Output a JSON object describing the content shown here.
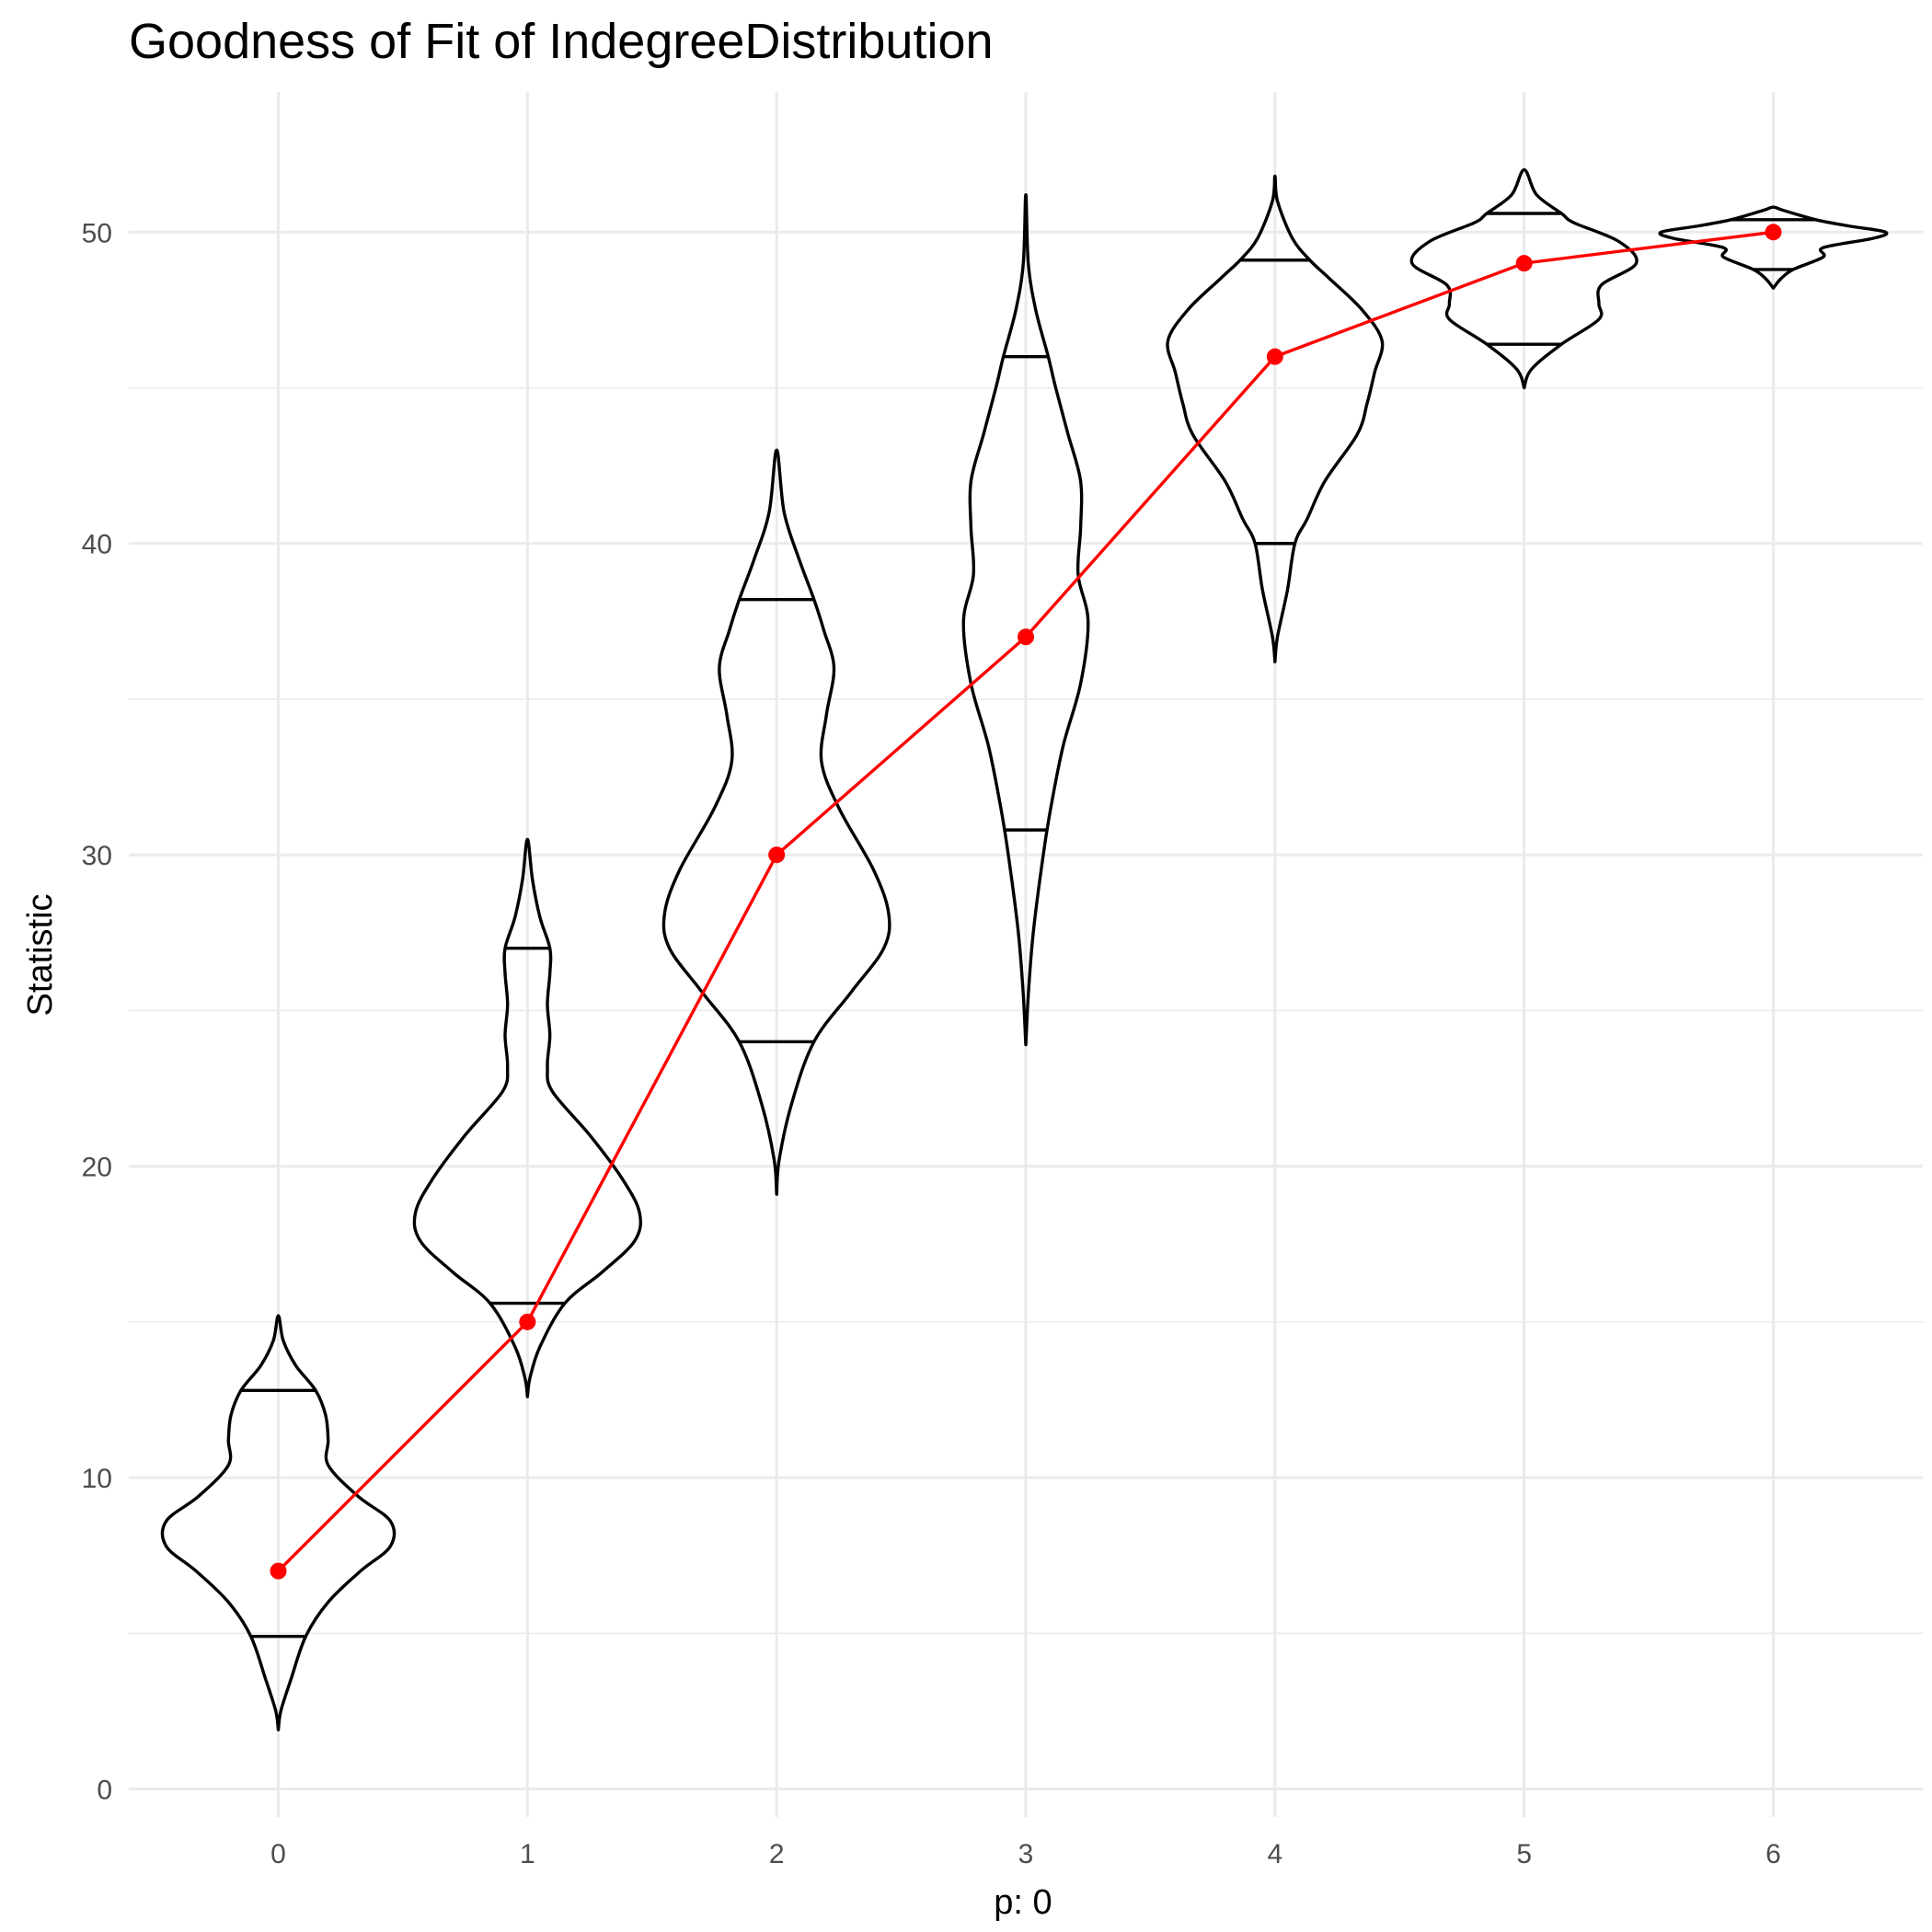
{
  "chart_data": {
    "type": "violin",
    "title": "Goodness of Fit of IndegreeDistribution",
    "xlabel": "p: 0",
    "ylabel": "Statistic",
    "ylim": [
      -0.9,
      54.5
    ],
    "xlim": [
      -0.6,
      6.6
    ],
    "y_ticks": [
      0,
      10,
      20,
      30,
      40,
      50
    ],
    "categories": [
      "0",
      "1",
      "2",
      "3",
      "4",
      "5",
      "6"
    ],
    "grid": true,
    "colors": {
      "violin": "#000000",
      "observed": "#ff0000",
      "grid": "#ebebeb"
    },
    "violins": [
      {
        "x": 0,
        "quantiles": [
          4.9,
          12.8
        ],
        "profile": [
          [
            1.9,
            0
          ],
          [
            2.5,
            0.01
          ],
          [
            3.5,
            0.05
          ],
          [
            4.9,
            0.11
          ],
          [
            6,
            0.2
          ],
          [
            7,
            0.33
          ],
          [
            7.8,
            0.45
          ],
          [
            8.6,
            0.45
          ],
          [
            9.4,
            0.32
          ],
          [
            10.4,
            0.2
          ],
          [
            11.2,
            0.2
          ],
          [
            12,
            0.19
          ],
          [
            12.8,
            0.15
          ],
          [
            13.6,
            0.07
          ],
          [
            14.4,
            0.02
          ],
          [
            15.2,
            0
          ]
        ]
      },
      {
        "x": 1,
        "quantiles": [
          15.6,
          27
        ],
        "profile": [
          [
            12.6,
            0
          ],
          [
            13.2,
            0.01
          ],
          [
            14.2,
            0.05
          ],
          [
            15.6,
            0.15
          ],
          [
            16.6,
            0.3
          ],
          [
            17.6,
            0.43
          ],
          [
            18.5,
            0.45
          ],
          [
            19.6,
            0.38
          ],
          [
            21,
            0.25
          ],
          [
            22.4,
            0.1
          ],
          [
            23.2,
            0.08
          ],
          [
            24.2,
            0.09
          ],
          [
            25.2,
            0.08
          ],
          [
            26.2,
            0.09
          ],
          [
            27,
            0.09
          ],
          [
            28,
            0.05
          ],
          [
            29.2,
            0.02
          ],
          [
            30.5,
            0
          ]
        ]
      },
      {
        "x": 2,
        "quantiles": [
          24,
          38.2
        ],
        "profile": [
          [
            19.1,
            0
          ],
          [
            20.2,
            0.01
          ],
          [
            22,
            0.06
          ],
          [
            24,
            0.15
          ],
          [
            25.6,
            0.3
          ],
          [
            27,
            0.43
          ],
          [
            28.1,
            0.45
          ],
          [
            29.5,
            0.39
          ],
          [
            31.5,
            0.25
          ],
          [
            33,
            0.18
          ],
          [
            34.5,
            0.2
          ],
          [
            36,
            0.23
          ],
          [
            37.2,
            0.19
          ],
          [
            38.2,
            0.15
          ],
          [
            39.5,
            0.09
          ],
          [
            41,
            0.03
          ],
          [
            43,
            0
          ]
        ]
      },
      {
        "x": 3,
        "quantiles": [
          30.8,
          46
        ],
        "profile": [
          [
            23.9,
            0
          ],
          [
            25.5,
            0.01
          ],
          [
            27.5,
            0.03
          ],
          [
            30,
            0.07
          ],
          [
            31.5,
            0.1
          ],
          [
            33.5,
            0.15
          ],
          [
            35.5,
            0.22
          ],
          [
            37.5,
            0.25
          ],
          [
            39,
            0.21
          ],
          [
            40.5,
            0.22
          ],
          [
            42,
            0.22
          ],
          [
            43.5,
            0.17
          ],
          [
            45,
            0.12
          ],
          [
            46,
            0.09
          ],
          [
            47.5,
            0.04
          ],
          [
            49,
            0.01
          ],
          [
            51.2,
            0
          ]
        ]
      },
      {
        "x": 4,
        "quantiles": [
          40,
          49.1
        ],
        "profile": [
          [
            36.2,
            0
          ],
          [
            37,
            0.01
          ],
          [
            38.5,
            0.05
          ],
          [
            40,
            0.08
          ],
          [
            40.8,
            0.13
          ],
          [
            42,
            0.2
          ],
          [
            43.5,
            0.33
          ],
          [
            44.5,
            0.37
          ],
          [
            45.5,
            0.4
          ],
          [
            46.5,
            0.43
          ],
          [
            47.5,
            0.35
          ],
          [
            48.5,
            0.22
          ],
          [
            49.1,
            0.14
          ],
          [
            49.8,
            0.07
          ],
          [
            51,
            0.01
          ],
          [
            51.8,
            0
          ]
        ]
      },
      {
        "x": 5,
        "quantiles": [
          46.4,
          50.6
        ],
        "profile": [
          [
            45,
            0
          ],
          [
            45.6,
            0.03
          ],
          [
            46.4,
            0.15
          ],
          [
            47.2,
            0.3
          ],
          [
            47.7,
            0.3
          ],
          [
            48.3,
            0.31
          ],
          [
            49,
            0.45
          ],
          [
            49.7,
            0.38
          ],
          [
            50.3,
            0.2
          ],
          [
            50.6,
            0.15
          ],
          [
            51.2,
            0.05
          ],
          [
            52,
            0
          ]
        ]
      },
      {
        "x": 6,
        "quantiles": [
          48.8,
          50.4
        ],
        "profile": [
          [
            48.2,
            0
          ],
          [
            48.5,
            0.03
          ],
          [
            48.8,
            0.08
          ],
          [
            49.2,
            0.2
          ],
          [
            49.5,
            0.2
          ],
          [
            49.8,
            0.4
          ],
          [
            50,
            0.45
          ],
          [
            50.2,
            0.3
          ],
          [
            50.4,
            0.17
          ],
          [
            50.7,
            0.04
          ],
          [
            50.8,
            0
          ]
        ]
      }
    ],
    "observed": {
      "name": "",
      "x": [
        0,
        1,
        2,
        3,
        4,
        5,
        6
      ],
      "y": [
        7,
        15,
        30,
        37,
        46,
        49,
        50
      ]
    }
  }
}
